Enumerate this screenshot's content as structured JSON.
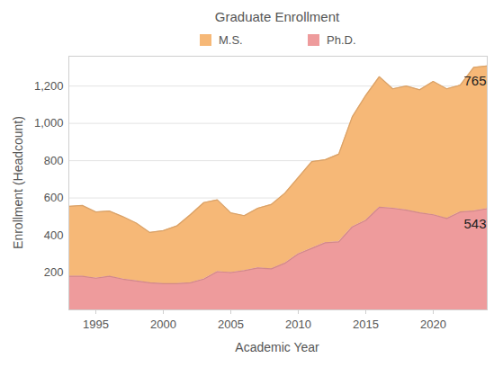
{
  "chart_data": {
    "type": "area",
    "title": "Graduate Enrollment",
    "x_label": "Academic Year",
    "y_label": "Enrollment (Headcount)",
    "stacked": true,
    "grid": true,
    "legend": "top",
    "x": [
      1993,
      1994,
      1995,
      1996,
      1997,
      1998,
      1999,
      2000,
      2001,
      2002,
      2003,
      2004,
      2005,
      2006,
      2007,
      2008,
      2009,
      2010,
      2011,
      2012,
      2013,
      2014,
      2015,
      2016,
      2017,
      2018,
      2019,
      2020,
      2021,
      2022,
      2023,
      2024
    ],
    "series": [
      {
        "name": "M.S.",
        "color": "#f6b877",
        "values": [
          375,
          380,
          355,
          350,
          335,
          310,
          270,
          285,
          310,
          365,
          410,
          385,
          320,
          295,
          320,
          345,
          375,
          410,
          465,
          445,
          470,
          590,
          670,
          700,
          640,
          665,
          660,
          715,
          695,
          680,
          770,
          765
        ]
      },
      {
        "name": "Ph.D.",
        "color": "#ee9b9c",
        "values": [
          180,
          180,
          170,
          180,
          165,
          155,
          145,
          140,
          140,
          145,
          165,
          205,
          200,
          210,
          225,
          220,
          250,
          300,
          330,
          360,
          365,
          445,
          480,
          550,
          545,
          535,
          520,
          510,
          490,
          525,
          530,
          543
        ]
      }
    ],
    "annotations": [
      {
        "series": "M.S.",
        "text": "765"
      },
      {
        "series": "Ph.D.",
        "text": "543"
      }
    ],
    "xlim": [
      1993,
      2024
    ],
    "xticks": [
      1995,
      2000,
      2005,
      2010,
      2015,
      2020
    ],
    "ylim": [
      0,
      1360
    ],
    "yticks": [
      200,
      400,
      600,
      800,
      {
        "value": 1000,
        "label": "1,000"
      },
      {
        "value": 1200,
        "label": "1,200"
      }
    ]
  }
}
